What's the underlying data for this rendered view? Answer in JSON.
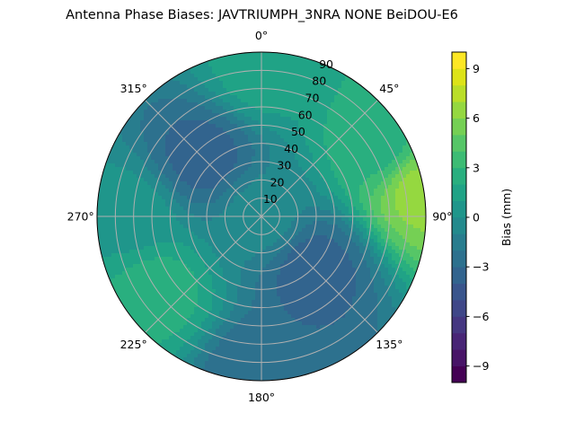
{
  "chart_data": {
    "type": "heatmap",
    "subtype": "polar-contourf",
    "title": "Antenna Phase Biases: JAVTRIUMPH_3NRA NONE BeiDOU-E6",
    "theta_labels": [
      "0°",
      "45°",
      "90°",
      "135°",
      "180°",
      "225°",
      "270°",
      "315°"
    ],
    "theta_values": [
      0,
      45,
      90,
      135,
      180,
      225,
      270,
      315
    ],
    "theta_direction": "clockwise",
    "theta_zero": "N",
    "r_labels": [
      "10",
      "20",
      "30",
      "40",
      "50",
      "60",
      "70",
      "80",
      "90"
    ],
    "r_values": [
      10,
      20,
      30,
      40,
      50,
      60,
      70,
      80,
      90
    ],
    "rlim": [
      0,
      90
    ],
    "grid": true,
    "colorbar": {
      "label": "Bias (mm)",
      "ticks": [
        "−9",
        "−6",
        "−3",
        "0",
        "3",
        "6",
        "9"
      ],
      "tick_values": [
        -9,
        -6,
        -3,
        0,
        3,
        6,
        9
      ],
      "range": [
        -10,
        10
      ],
      "levels": 20,
      "colormap": "viridis"
    },
    "features": [
      {
        "desc": "center (zenith)",
        "theta": 0,
        "r": 0,
        "bias_mm": -0.5
      },
      {
        "desc": "negative lobe NW",
        "theta": 315,
        "r": 45,
        "bias_mm": -3.5
      },
      {
        "desc": "negative lobe SE",
        "theta": 135,
        "r": 40,
        "bias_mm": -3.5
      },
      {
        "desc": "positive band E edge",
        "theta": 80,
        "r": 88,
        "bias_mm": 6.5
      },
      {
        "desc": "positive band NE",
        "theta": 60,
        "r": 75,
        "bias_mm": 2.5
      },
      {
        "desc": "positive band SW",
        "theta": 235,
        "r": 70,
        "bias_mm": 2.5
      },
      {
        "desc": "south rim",
        "theta": 180,
        "r": 88,
        "bias_mm": -3
      },
      {
        "desc": "north rim",
        "theta": 0,
        "r": 80,
        "bias_mm": 1.5
      },
      {
        "desc": "west region",
        "theta": 270,
        "r": 70,
        "bias_mm": 0.5
      }
    ]
  },
  "colors": {
    "grid": "#b0b0b0",
    "viridis": [
      "#440154",
      "#481467",
      "#482576",
      "#453781",
      "#3f4788",
      "#39558c",
      "#32648e",
      "#2d718e",
      "#287d8e",
      "#238a8d",
      "#1f968b",
      "#20a386",
      "#29af7f",
      "#3dbc74",
      "#56c667",
      "#75d054",
      "#95d840",
      "#bade28",
      "#dde318",
      "#fde725"
    ]
  }
}
